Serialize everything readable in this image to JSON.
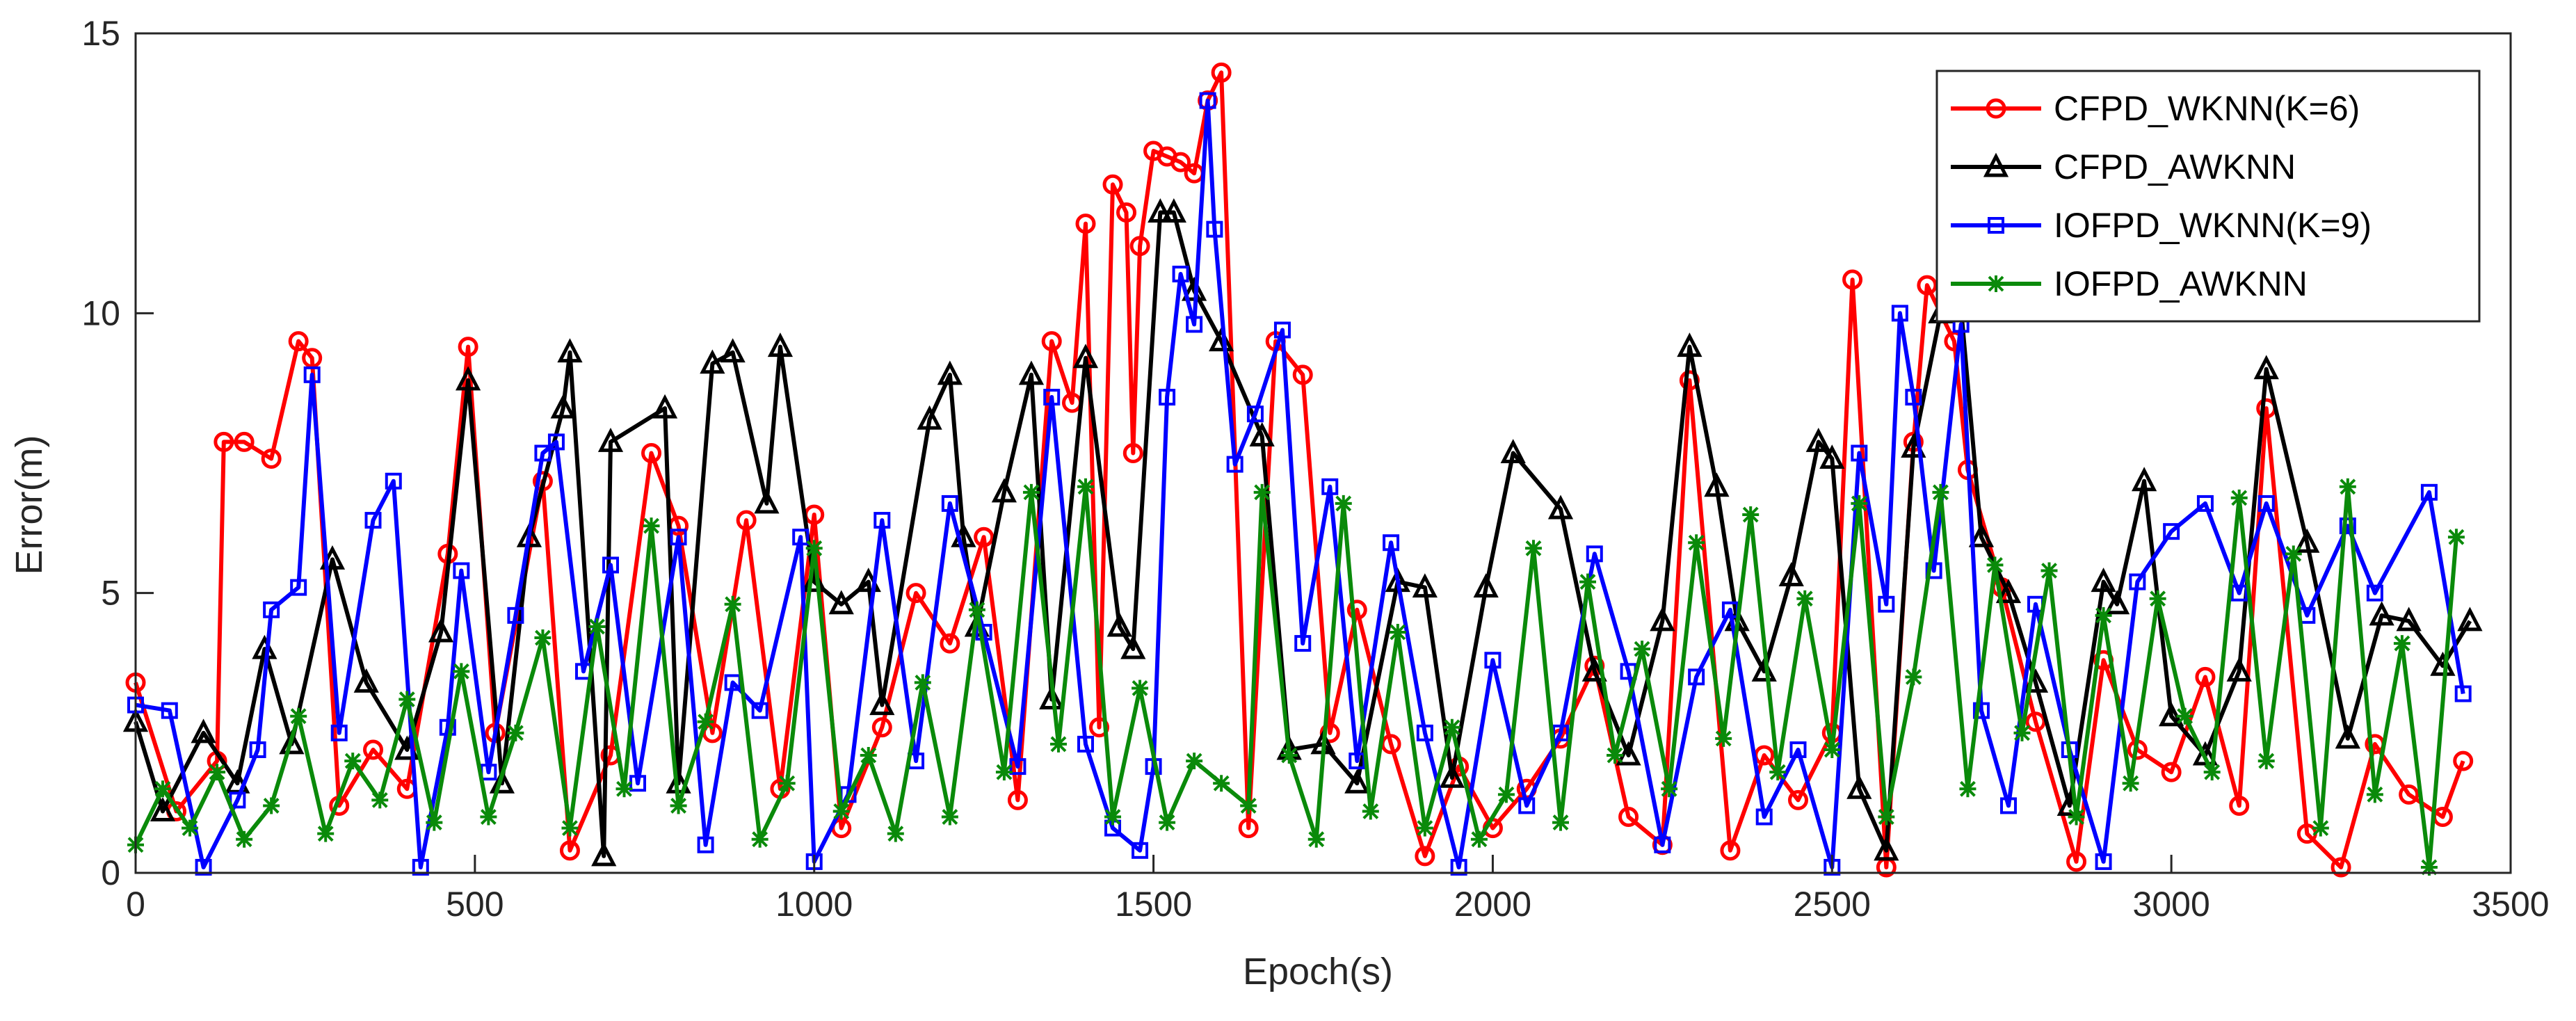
{
  "chart_data": {
    "type": "line",
    "xlabel": "Epoch(s)",
    "ylabel": "Error(m)",
    "xlim": [
      0,
      3500
    ],
    "ylim": [
      0,
      15
    ],
    "xticks": [
      0,
      500,
      1000,
      1500,
      2000,
      2500,
      3000,
      3500
    ],
    "yticks": [
      0,
      5,
      10,
      15
    ],
    "grid": false,
    "legend_position": "top-right",
    "series": [
      {
        "name": "CFPD_WKNN(K=6)",
        "color": "#ff0000",
        "marker": "circle",
        "x": [
          0,
          60,
          120,
          130,
          160,
          200,
          240,
          260,
          300,
          350,
          400,
          460,
          490,
          530,
          600,
          640,
          700,
          760,
          800,
          850,
          900,
          950,
          1000,
          1040,
          1100,
          1150,
          1200,
          1250,
          1300,
          1350,
          1380,
          1400,
          1420,
          1440,
          1460,
          1470,
          1480,
          1500,
          1520,
          1540,
          1560,
          1580,
          1600,
          1640,
          1680,
          1720,
          1760,
          1800,
          1850,
          1900,
          1950,
          2000,
          2050,
          2100,
          2150,
          2200,
          2250,
          2290,
          2350,
          2400,
          2450,
          2500,
          2530,
          2580,
          2620,
          2640,
          2680,
          2700,
          2750,
          2800,
          2860,
          2900,
          2950,
          3000,
          3050,
          3100,
          3140,
          3200,
          3250,
          3300,
          3350,
          3400,
          3430
        ],
        "y": [
          3.4,
          1.1,
          2.0,
          7.7,
          7.7,
          7.4,
          9.5,
          9.2,
          1.2,
          2.2,
          1.5,
          5.7,
          9.4,
          2.5,
          7.0,
          0.4,
          2.1,
          7.5,
          6.2,
          2.5,
          6.3,
          1.5,
          6.4,
          0.8,
          2.6,
          5.0,
          4.1,
          6.0,
          1.3,
          9.5,
          8.4,
          11.6,
          2.6,
          12.3,
          11.8,
          7.5,
          11.2,
          12.9,
          12.8,
          12.7,
          12.5,
          13.8,
          14.3,
          0.8,
          9.5,
          8.9,
          2.5,
          4.7,
          2.3,
          0.3,
          1.9,
          0.8,
          1.5,
          2.4,
          3.7,
          1.0,
          0.5,
          8.8,
          0.4,
          2.1,
          1.3,
          2.5,
          10.6,
          0.1,
          7.7,
          10.5,
          9.5,
          7.2,
          5.1,
          2.7,
          0.2,
          3.8,
          2.2,
          1.8,
          3.5,
          1.2,
          8.3,
          0.7,
          0.1,
          2.3,
          1.4,
          1.0,
          2.0
        ]
      },
      {
        "name": "CFPD_AWKNN",
        "color": "#000000",
        "marker": "triangle",
        "x": [
          0,
          40,
          100,
          150,
          190,
          230,
          290,
          340,
          400,
          450,
          490,
          540,
          580,
          630,
          640,
          690,
          700,
          780,
          800,
          850,
          880,
          930,
          950,
          1000,
          1040,
          1080,
          1100,
          1170,
          1200,
          1220,
          1240,
          1280,
          1320,
          1350,
          1400,
          1450,
          1470,
          1510,
          1530,
          1560,
          1600,
          1660,
          1700,
          1750,
          1800,
          1860,
          1900,
          1940,
          1990,
          2030,
          2100,
          2150,
          2200,
          2250,
          2290,
          2330,
          2360,
          2400,
          2440,
          2480,
          2500,
          2540,
          2580,
          2620,
          2660,
          2690,
          2720,
          2760,
          2800,
          2850,
          2900,
          2920,
          2960,
          3000,
          3050,
          3100,
          3140,
          3200,
          3260,
          3310,
          3350,
          3400,
          3440
        ],
        "y": [
          2.7,
          1.1,
          2.5,
          1.6,
          4.0,
          2.3,
          5.6,
          3.4,
          2.2,
          4.3,
          8.8,
          1.6,
          6.0,
          8.3,
          9.3,
          0.3,
          7.7,
          8.3,
          1.6,
          9.1,
          9.3,
          6.6,
          9.4,
          5.2,
          4.8,
          5.2,
          3.0,
          8.1,
          8.9,
          6.0,
          4.4,
          6.8,
          8.9,
          3.1,
          9.2,
          4.4,
          4.0,
          11.8,
          11.8,
          10.4,
          9.5,
          7.8,
          2.2,
          2.3,
          1.6,
          5.2,
          5.1,
          1.7,
          5.1,
          7.5,
          6.5,
          3.6,
          2.1,
          4.5,
          9.4,
          6.9,
          4.5,
          3.6,
          5.3,
          7.7,
          7.4,
          1.5,
          0.4,
          7.6,
          10.0,
          10.1,
          6.0,
          5.0,
          3.4,
          1.2,
          5.2,
          4.8,
          7.0,
          2.8,
          2.1,
          3.6,
          9.0,
          5.9,
          2.4,
          4.6,
          4.5,
          3.7,
          4.5
        ]
      },
      {
        "name": "IOFPD_WKNN(K=9)",
        "color": "#0000ff",
        "marker": "square",
        "x": [
          0,
          50,
          100,
          150,
          180,
          200,
          240,
          260,
          300,
          350,
          380,
          420,
          460,
          480,
          520,
          560,
          600,
          620,
          660,
          700,
          740,
          800,
          840,
          880,
          920,
          980,
          1000,
          1050,
          1100,
          1150,
          1200,
          1250,
          1300,
          1350,
          1400,
          1440,
          1480,
          1500,
          1520,
          1540,
          1560,
          1580,
          1590,
          1620,
          1650,
          1690,
          1720,
          1760,
          1800,
          1850,
          1900,
          1950,
          2000,
          2050,
          2100,
          2150,
          2200,
          2250,
          2300,
          2350,
          2400,
          2450,
          2500,
          2540,
          2580,
          2600,
          2620,
          2650,
          2690,
          2720,
          2760,
          2800,
          2850,
          2900,
          2950,
          3000,
          3050,
          3100,
          3140,
          3200,
          3260,
          3300,
          3380,
          3430
        ],
        "y": [
          3.0,
          2.9,
          0.1,
          1.3,
          2.2,
          4.7,
          5.1,
          8.9,
          2.5,
          6.3,
          7.0,
          0.1,
          2.6,
          5.4,
          1.8,
          4.6,
          7.5,
          7.7,
          3.6,
          5.5,
          1.6,
          6.0,
          0.5,
          3.4,
          2.9,
          6.0,
          0.2,
          1.4,
          6.3,
          2.0,
          6.6,
          4.3,
          1.9,
          8.5,
          2.3,
          0.8,
          0.4,
          1.9,
          8.5,
          10.7,
          9.8,
          13.8,
          11.5,
          7.3,
          8.2,
          9.7,
          4.1,
          6.9,
          2.0,
          5.9,
          2.5,
          0.1,
          3.8,
          1.2,
          2.5,
          5.7,
          3.6,
          0.5,
          3.5,
          4.7,
          1.0,
          2.2,
          0.1,
          7.5,
          4.8,
          10.0,
          8.5,
          5.4,
          9.8,
          2.9,
          1.2,
          4.8,
          2.2,
          0.2,
          5.2,
          6.1,
          6.6,
          5.0,
          6.6,
          4.6,
          6.2,
          5.0,
          6.8,
          3.2
        ]
      },
      {
        "name": "IOFPD_AWKNN",
        "color": "#0a8a0a",
        "marker": "asterisk",
        "x": [
          0,
          40,
          80,
          120,
          160,
          200,
          240,
          280,
          320,
          360,
          400,
          440,
          480,
          520,
          560,
          600,
          640,
          680,
          720,
          760,
          800,
          840,
          880,
          920,
          960,
          1000,
          1040,
          1080,
          1120,
          1160,
          1200,
          1240,
          1280,
          1320,
          1360,
          1400,
          1440,
          1480,
          1520,
          1560,
          1600,
          1640,
          1660,
          1700,
          1740,
          1780,
          1820,
          1860,
          1900,
          1940,
          1980,
          2020,
          2060,
          2100,
          2140,
          2180,
          2220,
          2260,
          2300,
          2340,
          2380,
          2420,
          2460,
          2500,
          2540,
          2580,
          2620,
          2660,
          2700,
          2740,
          2780,
          2820,
          2860,
          2900,
          2940,
          2980,
          3020,
          3060,
          3100,
          3140,
          3180,
          3220,
          3260,
          3300,
          3340,
          3380,
          3420
        ],
        "y": [
          0.5,
          1.5,
          0.8,
          1.8,
          0.6,
          1.2,
          2.8,
          0.7,
          2.0,
          1.3,
          3.1,
          0.9,
          3.6,
          1.0,
          2.5,
          4.2,
          0.8,
          4.4,
          1.5,
          6.2,
          1.2,
          2.7,
          4.8,
          0.6,
          1.6,
          5.8,
          1.1,
          2.1,
          0.7,
          3.4,
          1.0,
          4.7,
          1.8,
          6.8,
          2.3,
          6.9,
          1.0,
          3.3,
          0.9,
          2.0,
          1.6,
          1.2,
          6.8,
          2.1,
          0.6,
          6.6,
          1.1,
          4.3,
          0.8,
          2.6,
          0.6,
          1.4,
          5.8,
          0.9,
          5.2,
          2.1,
          4.0,
          1.5,
          5.9,
          2.4,
          6.4,
          1.8,
          4.9,
          2.2,
          6.6,
          1.0,
          3.5,
          6.8,
          1.5,
          5.5,
          2.5,
          5.4,
          1.0,
          4.6,
          1.6,
          4.9,
          2.8,
          1.8,
          6.7,
          2.0,
          5.7,
          0.8,
          6.9,
          1.4,
          4.1,
          0.1,
          6.0
        ]
      }
    ]
  }
}
